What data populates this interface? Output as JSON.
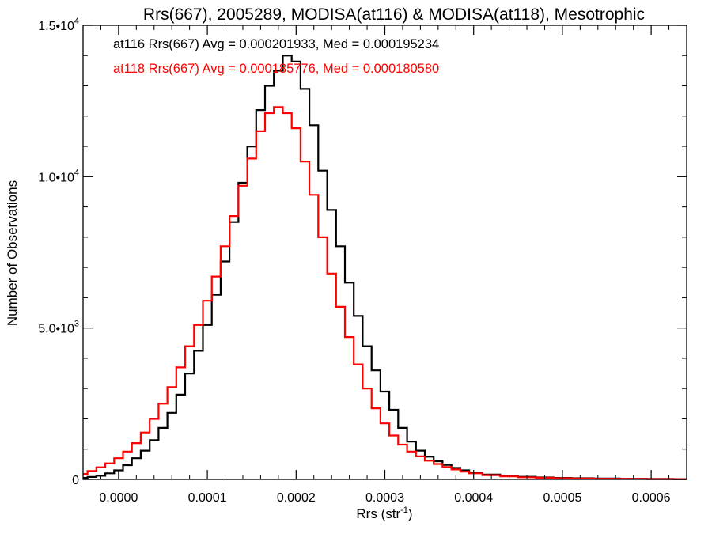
{
  "chart_data": {
    "type": "line",
    "title": "Rrs(667), 2005289, MODISA(at116) & MODISA(at118), Mesotrophic",
    "xlabel_main": "Rrs (str",
    "xlabel_sup": "-1",
    "xlabel_close": ")",
    "ylabel": "Number of Observations",
    "xlim": [
      -4e-05,
      0.00064
    ],
    "ylim": [
      0,
      15000
    ],
    "x_ticks": [
      {
        "value": 0.0,
        "label": "0.0000"
      },
      {
        "value": 0.0001,
        "label": "0.0001"
      },
      {
        "value": 0.0002,
        "label": "0.0002"
      },
      {
        "value": 0.0003,
        "label": "0.0003"
      },
      {
        "value": 0.0004,
        "label": "0.0004"
      },
      {
        "value": 0.0005,
        "label": "0.0005"
      },
      {
        "value": 0.0006,
        "label": "0.0006"
      }
    ],
    "y_ticks": [
      {
        "value": 0,
        "mant": "0",
        "exp": ""
      },
      {
        "value": 5000,
        "mant": "5.0•10",
        "exp": "3"
      },
      {
        "value": 10000,
        "mant": "1.0•10",
        "exp": "4"
      },
      {
        "value": 15000,
        "mant": "1.5•10",
        "exp": "4"
      }
    ],
    "annotations": [
      {
        "text": "at116 Rrs(667) Avg = 0.000201933, Med = 0.000195234",
        "color": "#000000"
      },
      {
        "text": "at118 Rrs(667) Avg = 0.000185776, Med = 0.000180580",
        "color": "#ff0000"
      }
    ],
    "series": [
      {
        "color": "#000000",
        "points": [
          [
            -4e-05,
            50
          ],
          [
            -3e-05,
            80
          ],
          [
            -2e-05,
            120
          ],
          [
            -1e-05,
            200
          ],
          [
            0.0,
            300
          ],
          [
            1e-05,
            470
          ],
          [
            2e-05,
            700
          ],
          [
            3e-05,
            950
          ],
          [
            4e-05,
            1300
          ],
          [
            5e-05,
            1700
          ],
          [
            6e-05,
            2200
          ],
          [
            7e-05,
            2800
          ],
          [
            8e-05,
            3500
          ],
          [
            9e-05,
            4250
          ],
          [
            0.0001,
            5100
          ],
          [
            0.00011,
            6100
          ],
          [
            0.00012,
            7200
          ],
          [
            0.00013,
            8500
          ],
          [
            0.00014,
            9800
          ],
          [
            0.00015,
            11000
          ],
          [
            0.00016,
            12200
          ],
          [
            0.00017,
            13000
          ],
          [
            0.00018,
            13500
          ],
          [
            0.00019,
            14000
          ],
          [
            0.0002,
            13800
          ],
          [
            0.00021,
            12900
          ],
          [
            0.00022,
            11700
          ],
          [
            0.00023,
            10200
          ],
          [
            0.00024,
            8900
          ],
          [
            0.00025,
            7700
          ],
          [
            0.00026,
            6500
          ],
          [
            0.00027,
            5400
          ],
          [
            0.00028,
            4400
          ],
          [
            0.00029,
            3600
          ],
          [
            0.0003,
            2900
          ],
          [
            0.00031,
            2300
          ],
          [
            0.00032,
            1700
          ],
          [
            0.00033,
            1250
          ],
          [
            0.00034,
            950
          ],
          [
            0.00035,
            750
          ],
          [
            0.00036,
            600
          ],
          [
            0.00037,
            480
          ],
          [
            0.00038,
            380
          ],
          [
            0.00039,
            300
          ],
          [
            0.0004,
            230
          ],
          [
            0.00042,
            160
          ],
          [
            0.00044,
            110
          ],
          [
            0.00046,
            85
          ],
          [
            0.00048,
            65
          ],
          [
            0.0005,
            50
          ],
          [
            0.00052,
            40
          ],
          [
            0.00055,
            30
          ],
          [
            0.00058,
            20
          ],
          [
            0.00061,
            15
          ],
          [
            0.00064,
            10
          ]
        ]
      },
      {
        "color": "#ff0000",
        "points": [
          [
            -4e-05,
            180
          ],
          [
            -3e-05,
            280
          ],
          [
            -2e-05,
            400
          ],
          [
            -1e-05,
            530
          ],
          [
            0.0,
            700
          ],
          [
            1e-05,
            920
          ],
          [
            2e-05,
            1200
          ],
          [
            3e-05,
            1550
          ],
          [
            4e-05,
            2000
          ],
          [
            5e-05,
            2500
          ],
          [
            6e-05,
            3050
          ],
          [
            7e-05,
            3700
          ],
          [
            8e-05,
            4400
          ],
          [
            9e-05,
            5100
          ],
          [
            0.0001,
            5900
          ],
          [
            0.00011,
            6700
          ],
          [
            0.00012,
            7700
          ],
          [
            0.00013,
            8700
          ],
          [
            0.00014,
            9700
          ],
          [
            0.00015,
            10600
          ],
          [
            0.00016,
            11500
          ],
          [
            0.00017,
            12100
          ],
          [
            0.00018,
            12300
          ],
          [
            0.00019,
            12100
          ],
          [
            0.0002,
            11600
          ],
          [
            0.00021,
            10500
          ],
          [
            0.00022,
            9400
          ],
          [
            0.00023,
            8000
          ],
          [
            0.00024,
            6800
          ],
          [
            0.00025,
            5700
          ],
          [
            0.00026,
            4700
          ],
          [
            0.00027,
            3800
          ],
          [
            0.00028,
            3000
          ],
          [
            0.00029,
            2350
          ],
          [
            0.0003,
            1850
          ],
          [
            0.00031,
            1450
          ],
          [
            0.00032,
            1150
          ],
          [
            0.00033,
            920
          ],
          [
            0.00034,
            760
          ],
          [
            0.00035,
            620
          ],
          [
            0.00036,
            510
          ],
          [
            0.00037,
            410
          ],
          [
            0.00038,
            330
          ],
          [
            0.00039,
            260
          ],
          [
            0.0004,
            200
          ],
          [
            0.00042,
            140
          ],
          [
            0.00044,
            100
          ],
          [
            0.00046,
            70
          ],
          [
            0.00048,
            55
          ],
          [
            0.0005,
            40
          ],
          [
            0.00052,
            30
          ],
          [
            0.00055,
            20
          ],
          [
            0.00058,
            15
          ],
          [
            0.00061,
            10
          ],
          [
            0.00064,
            8
          ]
        ]
      }
    ]
  }
}
